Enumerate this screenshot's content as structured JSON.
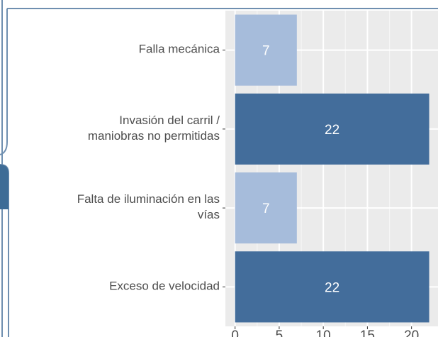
{
  "chart_data": {
    "type": "bar",
    "orientation": "horizontal",
    "categories": [
      [
        "Falla mecánica"
      ],
      [
        "Invasión del carril /",
        "maniobras no permitidas"
      ],
      [
        "Falta de iluminación en las",
        "vías"
      ],
      [
        "Exceso de velocidad"
      ]
    ],
    "values": [
      7,
      22,
      7,
      22
    ],
    "colors": [
      "#a6bcdb",
      "#436d9b",
      "#a6bcdb",
      "#436d9b"
    ],
    "xlim": [
      -1.1,
      23
    ],
    "xticks": [
      0,
      5,
      10,
      15,
      20
    ],
    "grid": true
  }
}
